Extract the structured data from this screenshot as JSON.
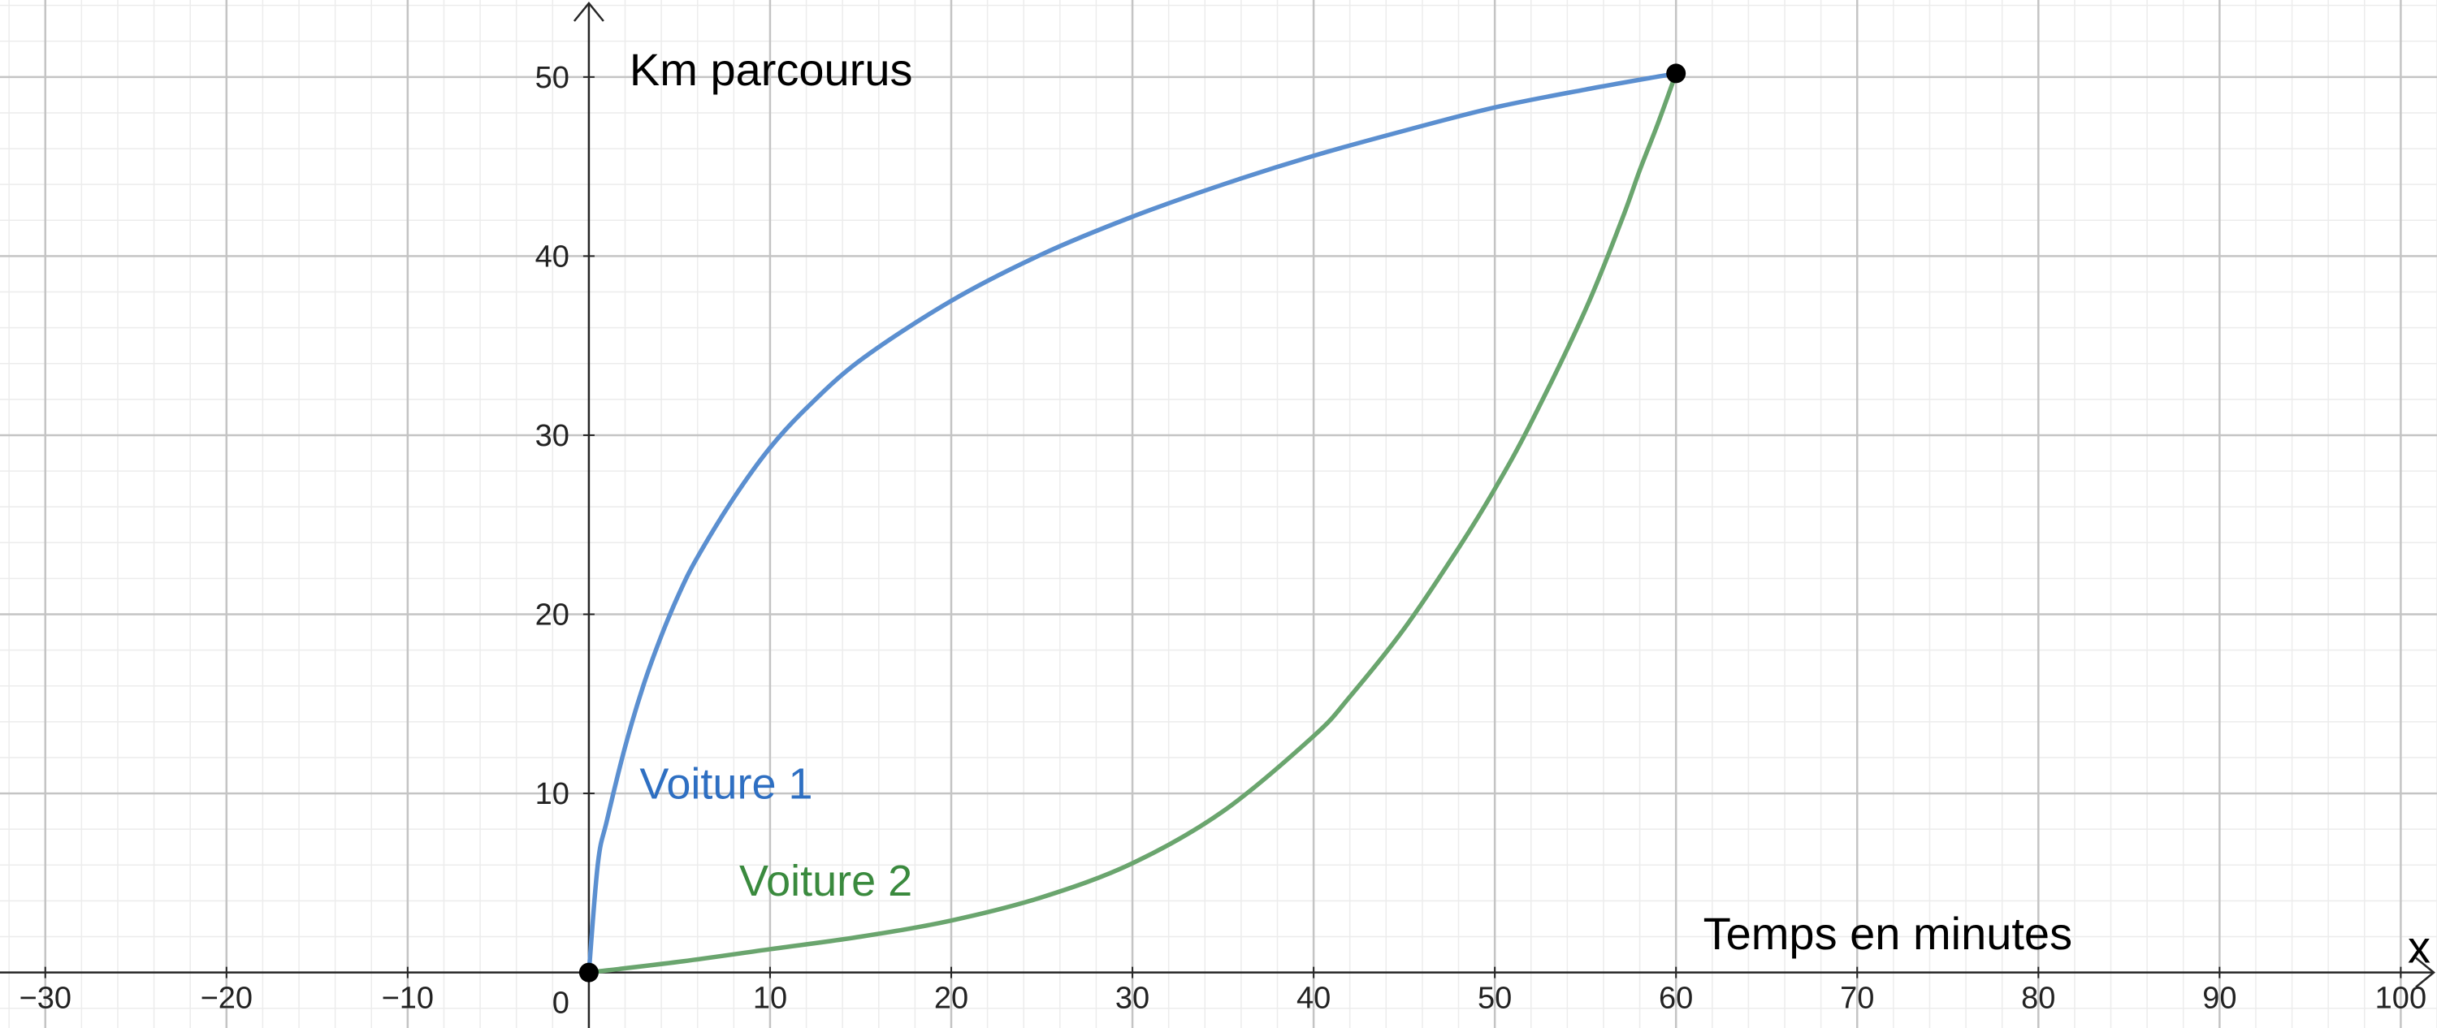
{
  "chart_data": {
    "type": "line",
    "title": "",
    "xlabel": "Temps en minutes",
    "ylabel": "Km parcourus",
    "x_axis_name": "x",
    "xlim": [
      -32.5,
      102
    ],
    "ylim": [
      -3.1,
      54.3
    ],
    "x_ticks": [
      -30,
      -20,
      -10,
      10,
      20,
      30,
      40,
      50,
      60,
      70,
      80,
      90,
      100
    ],
    "x_tick_labels": [
      "−30",
      "−20",
      "−10",
      "10",
      "20",
      "30",
      "40",
      "50",
      "60",
      "70",
      "80",
      "90",
      "100"
    ],
    "y_ticks": [
      10,
      20,
      30,
      40,
      50
    ],
    "y_tick_labels": [
      "10",
      "20",
      "30",
      "40",
      "50"
    ],
    "origin_label": "0",
    "grid": true,
    "series": [
      {
        "name": "Voiture 1",
        "color": "#5b8fd0",
        "label_color": "#2e6fc2",
        "x": [
          0,
          0.5,
          1,
          2,
          3,
          4,
          5,
          6,
          8,
          10,
          12,
          15,
          20,
          25,
          30,
          35,
          40,
          45,
          50,
          55,
          60
        ],
        "y": [
          0,
          6.1,
          8.5,
          12.6,
          16.0,
          18.8,
          21.2,
          23.2,
          26.5,
          29.3,
          31.5,
          34.2,
          37.5,
          40.1,
          42.2,
          44.0,
          45.6,
          47.0,
          48.3,
          49.3,
          50.2
        ]
      },
      {
        "name": "Voiture 2",
        "color": "#6aa56e",
        "label_color": "#3a8a3e",
        "x": [
          0,
          5,
          10,
          15,
          20,
          25,
          30,
          35,
          40,
          42,
          45,
          48,
          50,
          52,
          55,
          57,
          58,
          59,
          60
        ],
        "y": [
          0,
          0.6,
          1.3,
          2.0,
          2.9,
          4.2,
          6.1,
          9.0,
          13.2,
          15.4,
          19.2,
          23.7,
          27.0,
          30.7,
          37.0,
          42.0,
          44.8,
          47.4,
          50.2
        ]
      }
    ],
    "points": [
      {
        "x": 0,
        "y": 0
      },
      {
        "x": 60,
        "y": 50.2
      }
    ],
    "series_label_positions": [
      {
        "x": 2.8,
        "y": 9.7
      },
      {
        "x": 8.3,
        "y": 4.3
      }
    ]
  }
}
